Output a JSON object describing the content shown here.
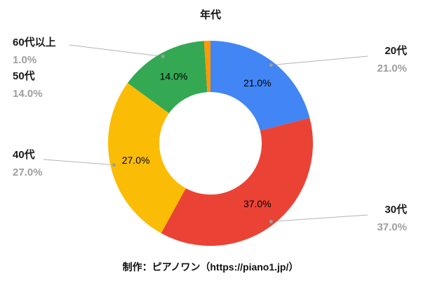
{
  "chart_data": {
    "type": "pie",
    "subtype": "donut",
    "title": "年代",
    "caption": "制作：ピアノワン（https://piano1.jp/）",
    "categories": [
      "20代",
      "30代",
      "40代",
      "50代",
      "60代以上"
    ],
    "values": [
      21.0,
      37.0,
      27.0,
      14.0,
      1.0
    ],
    "percent_labels": [
      "21.0%",
      "37.0%",
      "27.0%",
      "14.0%",
      "1.0%"
    ],
    "colors": [
      "#4285f4",
      "#ea4335",
      "#fbbc05",
      "#34a853",
      "#ff9900"
    ],
    "inner_hole_color": "#ffffff",
    "leader_line_color": "#b3b3b3",
    "callout_name_color": "#1a1a1a",
    "callout_percent_color": "#9e9e9e",
    "legend_position": "outside-callouts",
    "grid": false
  }
}
